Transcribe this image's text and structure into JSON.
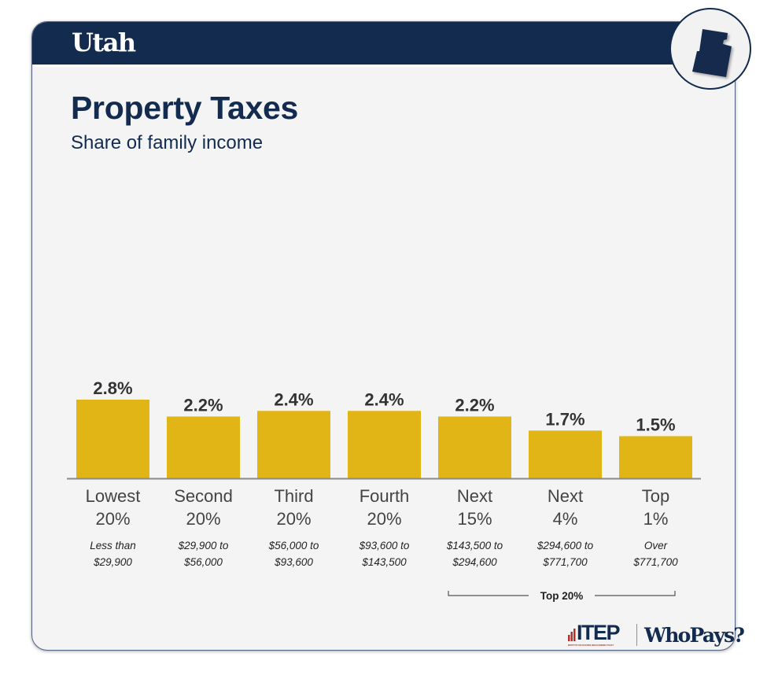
{
  "header": {
    "state": "Utah",
    "state_icon": "utah-state-outline-icon"
  },
  "title": "Property Taxes",
  "subtitle": "Share of family income",
  "chart_data": {
    "type": "bar",
    "title": "Property Taxes",
    "subtitle": "Share of family income",
    "xlabel": "",
    "ylabel": "Share of family income",
    "ylim": [
      0,
      2.8
    ],
    "grid": false,
    "value_format": "percent",
    "categories": [
      "Lowest 20%",
      "Second 20%",
      "Third 20%",
      "Fourth 20%",
      "Next 15%",
      "Next 4%",
      "Top 1%"
    ],
    "category_lines": [
      [
        "Lowest",
        "20%"
      ],
      [
        "Second",
        "20%"
      ],
      [
        "Third",
        "20%"
      ],
      [
        "Fourth",
        "20%"
      ],
      [
        "Next",
        "15%"
      ],
      [
        "Next",
        "4%"
      ],
      [
        "Top",
        "1%"
      ]
    ],
    "income_ranges": [
      [
        "Less than",
        "$29,900"
      ],
      [
        "$29,900 to",
        "$56,000"
      ],
      [
        "$56,000 to",
        "$93,600"
      ],
      [
        "$93,600 to",
        "$143,500"
      ],
      [
        "$143,500 to",
        "$294,600"
      ],
      [
        "$294,600 to",
        "$771,700"
      ],
      [
        "Over",
        "$771,700"
      ]
    ],
    "values": [
      2.8,
      2.2,
      2.4,
      2.4,
      2.2,
      1.7,
      1.5
    ],
    "value_labels": [
      "2.8%",
      "2.2%",
      "2.4%",
      "2.4%",
      "2.2%",
      "1.7%",
      "1.5%"
    ],
    "annotations": [
      {
        "text": "Top 20%",
        "spans_categories": [
          "Next 15%",
          "Next 4%",
          "Top 1%"
        ]
      }
    ],
    "colors": {
      "bar": "#e2b517",
      "label": "#333333",
      "axis": "#8a8a8a"
    }
  },
  "footer": {
    "itep": "ITEP",
    "itep_tagline": "INSTITUTE ON TAXATION AND ECONOMIC POLICY",
    "product": "WhoPays?"
  },
  "colors": {
    "navy": "#132b4e",
    "background": "#f4f4f4",
    "itep_red": "#b0302a"
  }
}
